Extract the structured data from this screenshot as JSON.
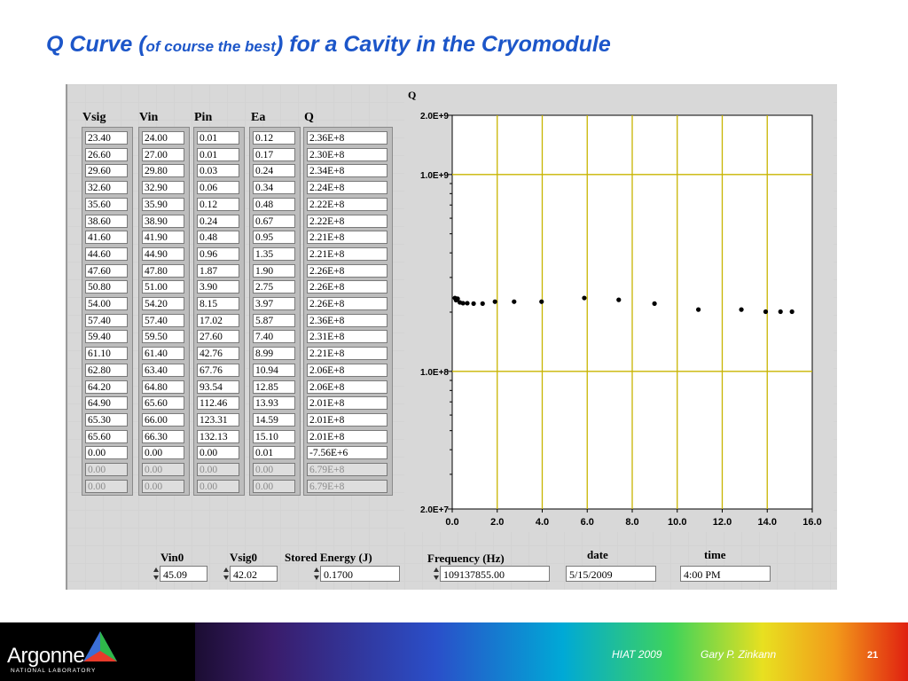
{
  "slide": {
    "title_part1": "Q Curve (",
    "title_small": "of course the best",
    "title_part2": ") for a Cavity in the Cryomodule"
  },
  "table": {
    "headers": [
      "Vsig",
      "Vin",
      "Pin",
      "Ea",
      "Q"
    ],
    "columns": [
      [
        "23.40",
        "26.60",
        "29.60",
        "32.60",
        "35.60",
        "38.60",
        "41.60",
        "44.60",
        "47.60",
        "50.80",
        "54.00",
        "57.40",
        "59.40",
        "61.10",
        "62.80",
        "64.20",
        "64.90",
        "65.30",
        "65.60",
        "0.00",
        "0.00",
        "0.00"
      ],
      [
        "24.00",
        "27.00",
        "29.80",
        "32.90",
        "35.90",
        "38.90",
        "41.90",
        "44.90",
        "47.80",
        "51.00",
        "54.20",
        "57.40",
        "59.50",
        "61.40",
        "63.40",
        "64.80",
        "65.60",
        "66.00",
        "66.30",
        "0.00",
        "0.00",
        "0.00"
      ],
      [
        "0.01",
        "0.01",
        "0.03",
        "0.06",
        "0.12",
        "0.24",
        "0.48",
        "0.96",
        "1.87",
        "3.90",
        "8.15",
        "17.02",
        "27.60",
        "42.76",
        "67.76",
        "93.54",
        "112.46",
        "123.31",
        "132.13",
        "0.00",
        "0.00",
        "0.00"
      ],
      [
        "0.12",
        "0.17",
        "0.24",
        "0.34",
        "0.48",
        "0.67",
        "0.95",
        "1.35",
        "1.90",
        "2.75",
        "3.97",
        "5.87",
        "7.40",
        "8.99",
        "10.94",
        "12.85",
        "13.93",
        "14.59",
        "15.10",
        "0.01",
        "0.00",
        "0.00"
      ],
      [
        "2.36E+8",
        "2.30E+8",
        "2.34E+8",
        "2.24E+8",
        "2.22E+8",
        "2.22E+8",
        "2.21E+8",
        "2.21E+8",
        "2.26E+8",
        "2.26E+8",
        "2.26E+8",
        "2.36E+8",
        "2.31E+8",
        "2.21E+8",
        "2.06E+8",
        "2.06E+8",
        "2.01E+8",
        "2.01E+8",
        "2.01E+8",
        "-7.56E+6",
        "6.79E+8",
        "6.79E+8"
      ]
    ],
    "dimmed_rows": [
      20,
      21
    ]
  },
  "chart_data": {
    "type": "scatter",
    "ylabel": "Q",
    "xlim": [
      0,
      16
    ],
    "ylim": [
      20000000,
      2000000000
    ],
    "yscale": "log",
    "x_ticks": [
      "0.0",
      "2.0",
      "4.0",
      "6.0",
      "8.0",
      "10.0",
      "12.0",
      "14.0",
      "16.0"
    ],
    "y_tick_labels": [
      {
        "label": "2.0E+9",
        "value": 2000000000
      },
      {
        "label": "1.0E+9",
        "value": 1000000000
      },
      {
        "label": "1.0E+8",
        "value": 100000000
      },
      {
        "label": "2.0E+7",
        "value": 20000000
      }
    ],
    "x": [
      0.12,
      0.17,
      0.24,
      0.34,
      0.48,
      0.67,
      0.95,
      1.35,
      1.9,
      2.75,
      3.97,
      5.87,
      7.4,
      8.99,
      10.94,
      12.85,
      13.93,
      14.59,
      15.1
    ],
    "y": [
      236000000,
      230000000,
      234000000,
      224000000,
      222000000,
      222000000,
      221000000,
      221000000,
      226000000,
      226000000,
      226000000,
      236000000,
      231000000,
      221000000,
      206000000,
      206000000,
      201000000,
      201000000,
      201000000
    ],
    "grid": true,
    "grid_color": "#c8b400",
    "plot_bg": "#ffffff",
    "point_color": "#000000"
  },
  "controls": {
    "vin0_label": "Vin0",
    "vin0_value": "45.09",
    "vsig0_label": "Vsig0",
    "vsig0_value": "42.02",
    "energy_label": "Stored Energy (J)",
    "energy_value": "0.1700",
    "freq_label": "Frequency (Hz)",
    "freq_value": "109137855.00",
    "date_label": "date",
    "date_value": "5/15/2009",
    "time_label": "time",
    "time_value": "4:00 PM"
  },
  "footer": {
    "org": "Argonne",
    "org_sub": "NATIONAL LABORATORY",
    "event": "HIAT 2009",
    "author": "Gary P. Zinkann",
    "page": "21"
  },
  "colors": {
    "title": "#1c56c9",
    "panel": "#d8d8d8"
  }
}
